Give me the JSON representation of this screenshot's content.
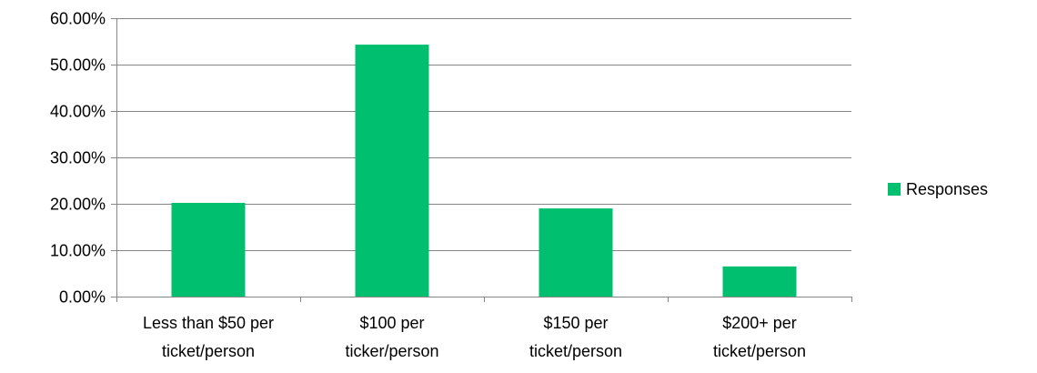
{
  "chart_data": {
    "type": "bar",
    "categories": [
      [
        "Less than $50 per",
        "ticket/person"
      ],
      [
        "$100 per",
        "ticker/person"
      ],
      [
        "$150 per",
        "ticket/person"
      ],
      [
        "$200+ per",
        "ticket/person"
      ]
    ],
    "series": [
      {
        "name": "Responses",
        "color": "#00BF6F",
        "values": [
          0.202,
          0.543,
          0.19,
          0.065
        ]
      }
    ],
    "ylim": [
      0,
      0.6
    ],
    "yticks": [
      0,
      0.1,
      0.2,
      0.3,
      0.4,
      0.5,
      0.6
    ],
    "ytick_labels": [
      "0.00%",
      "10.00%",
      "20.00%",
      "30.00%",
      "40.00%",
      "50.00%",
      "60.00%"
    ],
    "grid": true,
    "legend_position": "right",
    "title": "",
    "xlabel": "",
    "ylabel": ""
  }
}
